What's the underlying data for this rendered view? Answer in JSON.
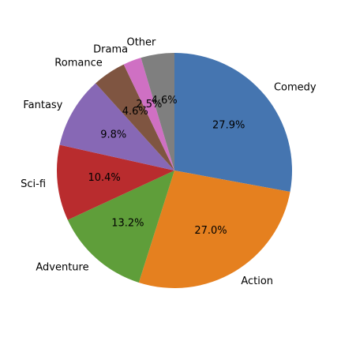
{
  "chart_data": {
    "type": "pie",
    "title": "",
    "start_angle_deg": 90,
    "direction": "clockwise",
    "legend": "none",
    "slices": [
      {
        "label": "Comedy",
        "value": 27.9,
        "pct_label": "27.9%",
        "color": "#4575b0"
      },
      {
        "label": "Action",
        "value": 27.0,
        "pct_label": "27.0%",
        "color": "#e5801f"
      },
      {
        "label": "Adventure",
        "value": 13.2,
        "pct_label": "13.2%",
        "color": "#5f9e3a"
      },
      {
        "label": "Sci-fi",
        "value": 10.4,
        "pct_label": "10.4%",
        "color": "#b92c2e"
      },
      {
        "label": "Fantasy",
        "value": 9.8,
        "pct_label": "9.8%",
        "color": "#8768b5"
      },
      {
        "label": "Romance",
        "value": 4.6,
        "pct_label": "4.6%",
        "color": "#7f5541"
      },
      {
        "label": "Drama",
        "value": 2.5,
        "pct_label": "2.5%",
        "color": "#cf70c3"
      },
      {
        "label": "Other",
        "value": 4.6,
        "pct_label": "4.6%",
        "color": "#7f7f7f"
      }
    ]
  }
}
